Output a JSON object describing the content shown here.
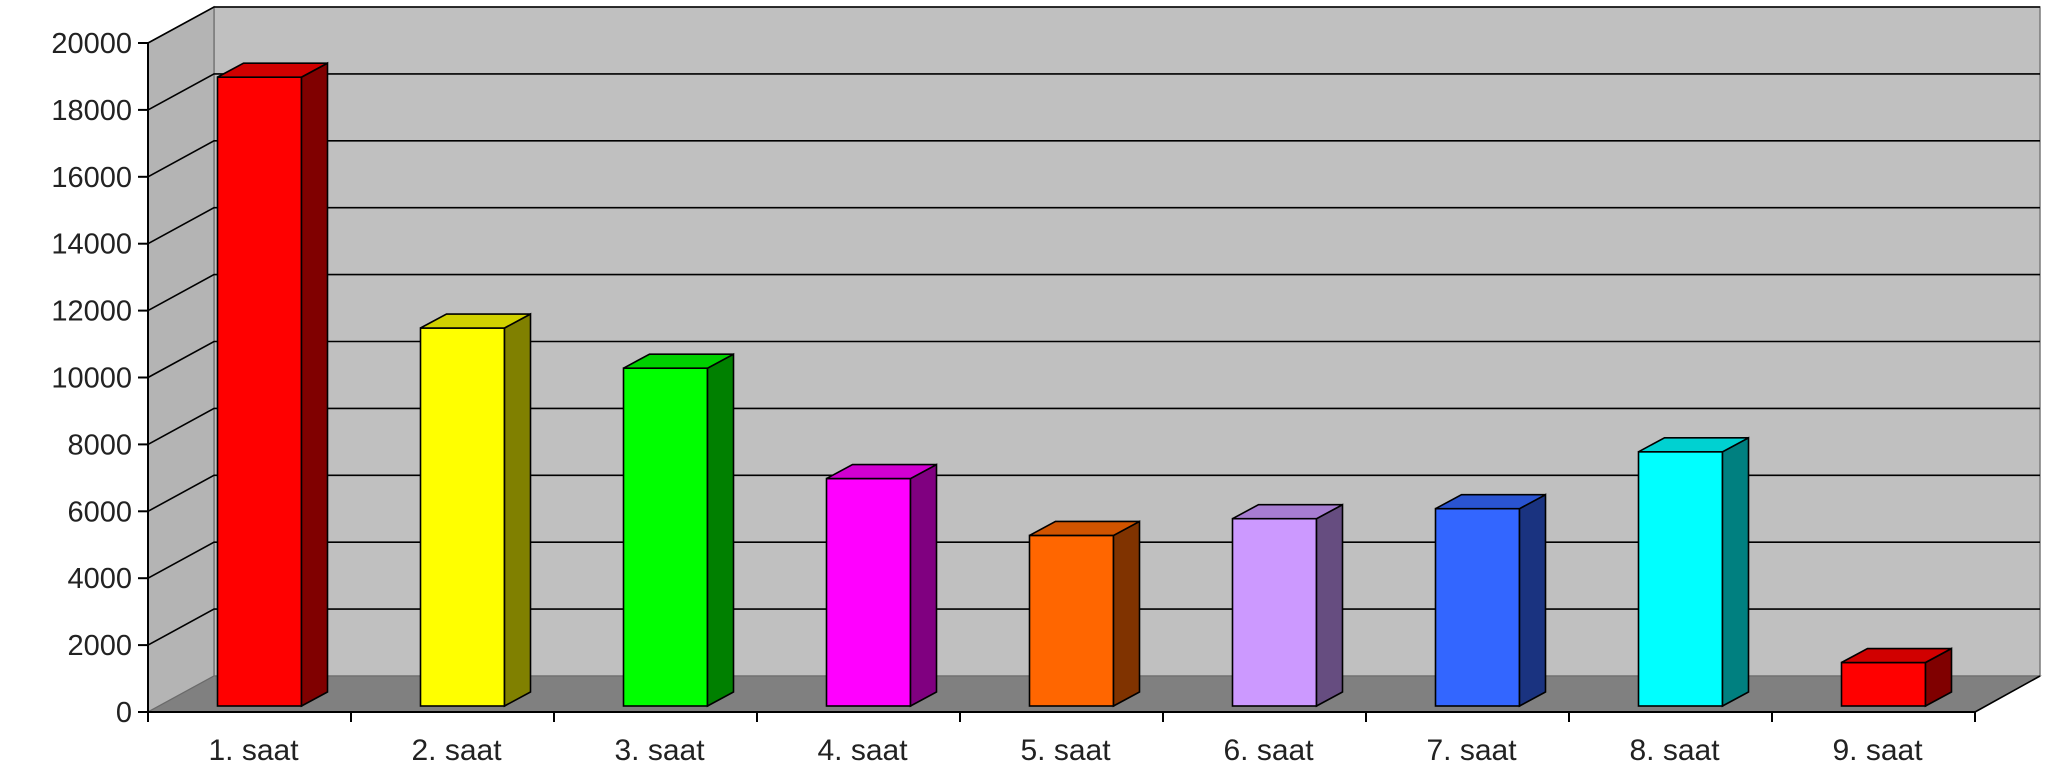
{
  "chart_data": {
    "type": "bar",
    "style": "3d-column",
    "categories": [
      "1. saat",
      "2. saat",
      "3. saat",
      "4. saat",
      "5. saat",
      "6. saat",
      "7. saat",
      "8. saat",
      "9. saat"
    ],
    "values": [
      18800,
      11300,
      10100,
      6800,
      5100,
      5600,
      5900,
      7600,
      1300
    ],
    "colors": [
      "#ff0000",
      "#ffff00",
      "#00ff00",
      "#ff00ff",
      "#ff6600",
      "#cc99ff",
      "#3366ff",
      "#00ffff",
      "#ff0000"
    ],
    "ylim": [
      0,
      20000
    ],
    "yticks": [
      0,
      2000,
      4000,
      6000,
      8000,
      10000,
      12000,
      14000,
      16000,
      18000,
      20000
    ],
    "grid": true,
    "legend": "none",
    "title": "",
    "xlabel": "",
    "ylabel": "",
    "plot_background": "#c0c0c0",
    "floor_color": "#808080"
  }
}
